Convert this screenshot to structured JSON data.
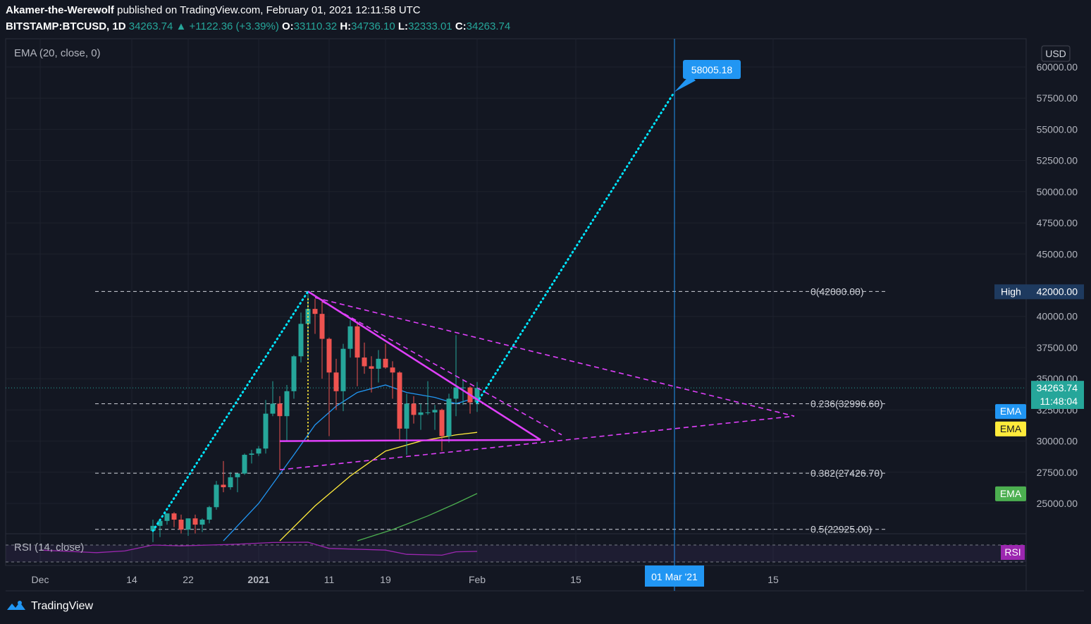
{
  "header": {
    "line1_user": "Akamer-the-Werewolf",
    "line1_rest": " published on TradingView.com, February 01, 2021 12:11:58 UTC",
    "symbol": "BITSTAMP:BTCUSD, 1D",
    "last": "34263.74",
    "change": "+1122.36 (+3.39%)",
    "o_label": "O:",
    "o": "33110.32",
    "h_label": "H:",
    "h": "34736.10",
    "l_label": "L:",
    "l": "32333.01",
    "c_label": "C:",
    "c": "34263.74"
  },
  "legend": {
    "ema": "EMA (20, close, 0)",
    "rsi": "RSI (14, close)"
  },
  "footer": {
    "brand": "TradingView"
  },
  "colors": {
    "background": "#131722",
    "up": "#26a69a",
    "down": "#ef5350",
    "ema20": "#2196f3",
    "ema50": "#ffeb3b",
    "ema100": "#4caf50",
    "pattern": "#e040fb",
    "projection": "#00e5ff",
    "rsi": "#9c27b0",
    "fib": "#d1d4dc"
  },
  "chart_data": {
    "type": "candlestick",
    "ylim": [
      22000,
      62000
    ],
    "currency": "USD",
    "y_ticks": [
      "60000.00",
      "57500.00",
      "55000.00",
      "52500.00",
      "50000.00",
      "47500.00",
      "45000.00",
      "40000.00",
      "37500.00",
      "35000.00",
      "32500.00",
      "30000.00",
      "27500.00",
      "25000.00"
    ],
    "x_ticks": [
      {
        "label": "Dec",
        "date": "2020-12-01"
      },
      {
        "label": "14",
        "date": "2020-12-14"
      },
      {
        "label": "22",
        "date": "2020-12-22"
      },
      {
        "label": "2021",
        "date": "2021-01-01"
      },
      {
        "label": "11",
        "date": "2021-01-11"
      },
      {
        "label": "19",
        "date": "2021-01-19"
      },
      {
        "label": "Feb",
        "date": "2021-02-01"
      },
      {
        "label": "15",
        "date": "2021-02-15"
      },
      {
        "label": "15",
        "date": "2021-03-15"
      }
    ],
    "candles": [
      {
        "d": "2020-12-17",
        "o": 22800,
        "h": 23700,
        "l": 21900,
        "c": 23200
      },
      {
        "d": "2020-12-18",
        "o": 23200,
        "h": 23300,
        "l": 22300,
        "c": 23600
      },
      {
        "d": "2020-12-19",
        "o": 23600,
        "h": 24200,
        "l": 23300,
        "c": 24200
      },
      {
        "d": "2020-12-20",
        "o": 24200,
        "h": 24300,
        "l": 23100,
        "c": 23700
      },
      {
        "d": "2020-12-21",
        "o": 23700,
        "h": 24100,
        "l": 22600,
        "c": 22900
      },
      {
        "d": "2020-12-22",
        "o": 22900,
        "h": 23800,
        "l": 22400,
        "c": 23800
      },
      {
        "d": "2020-12-23",
        "o": 23800,
        "h": 24100,
        "l": 22600,
        "c": 23300
      },
      {
        "d": "2020-12-24",
        "o": 23300,
        "h": 23800,
        "l": 22700,
        "c": 23700
      },
      {
        "d": "2020-12-25",
        "o": 23700,
        "h": 24800,
        "l": 23400,
        "c": 24700
      },
      {
        "d": "2020-12-26",
        "o": 24700,
        "h": 26800,
        "l": 24500,
        "c": 26500
      },
      {
        "d": "2020-12-27",
        "o": 26500,
        "h": 28400,
        "l": 25900,
        "c": 26300
      },
      {
        "d": "2020-12-28",
        "o": 26300,
        "h": 27500,
        "l": 26100,
        "c": 27100
      },
      {
        "d": "2020-12-29",
        "o": 27100,
        "h": 27400,
        "l": 25900,
        "c": 27400
      },
      {
        "d": "2020-12-30",
        "o": 27400,
        "h": 29000,
        "l": 27300,
        "c": 28900
      },
      {
        "d": "2020-12-31",
        "o": 28900,
        "h": 29300,
        "l": 28200,
        "c": 29000
      },
      {
        "d": "2021-01-01",
        "o": 29000,
        "h": 29600,
        "l": 28800,
        "c": 29400
      },
      {
        "d": "2021-01-02",
        "o": 29400,
        "h": 33300,
        "l": 29000,
        "c": 32200
      },
      {
        "d": "2021-01-03",
        "o": 32200,
        "h": 34800,
        "l": 32000,
        "c": 33000
      },
      {
        "d": "2021-01-04",
        "o": 33000,
        "h": 33600,
        "l": 27700,
        "c": 32000
      },
      {
        "d": "2021-01-05",
        "o": 32000,
        "h": 34500,
        "l": 30000,
        "c": 34000
      },
      {
        "d": "2021-01-06",
        "o": 34000,
        "h": 36900,
        "l": 33400,
        "c": 36800
      },
      {
        "d": "2021-01-07",
        "o": 36800,
        "h": 40300,
        "l": 36300,
        "c": 39400
      },
      {
        "d": "2021-01-08",
        "o": 39400,
        "h": 42000,
        "l": 36600,
        "c": 40600
      },
      {
        "d": "2021-01-09",
        "o": 40600,
        "h": 41400,
        "l": 38600,
        "c": 40200
      },
      {
        "d": "2021-01-10",
        "o": 40200,
        "h": 41400,
        "l": 35000,
        "c": 38200
      },
      {
        "d": "2021-01-11",
        "o": 38200,
        "h": 38300,
        "l": 30400,
        "c": 35500
      },
      {
        "d": "2021-01-12",
        "o": 35500,
        "h": 36600,
        "l": 32500,
        "c": 34000
      },
      {
        "d": "2021-01-13",
        "o": 34000,
        "h": 37800,
        "l": 32400,
        "c": 37400
      },
      {
        "d": "2021-01-14",
        "o": 37400,
        "h": 39700,
        "l": 36700,
        "c": 39200
      },
      {
        "d": "2021-01-15",
        "o": 39200,
        "h": 39600,
        "l": 34400,
        "c": 36700
      },
      {
        "d": "2021-01-16",
        "o": 36700,
        "h": 37900,
        "l": 35400,
        "c": 36000
      },
      {
        "d": "2021-01-17",
        "o": 36000,
        "h": 36800,
        "l": 33900,
        "c": 35800
      },
      {
        "d": "2021-01-18",
        "o": 35800,
        "h": 37300,
        "l": 34700,
        "c": 36600
      },
      {
        "d": "2021-01-19",
        "o": 36600,
        "h": 37800,
        "l": 35800,
        "c": 35900
      },
      {
        "d": "2021-01-20",
        "o": 35900,
        "h": 36400,
        "l": 33400,
        "c": 35500
      },
      {
        "d": "2021-01-21",
        "o": 35500,
        "h": 35600,
        "l": 30100,
        "c": 31000
      },
      {
        "d": "2021-01-22",
        "o": 31000,
        "h": 33800,
        "l": 28900,
        "c": 33000
      },
      {
        "d": "2021-01-23",
        "o": 33000,
        "h": 33600,
        "l": 31400,
        "c": 32100
      },
      {
        "d": "2021-01-24",
        "o": 32100,
        "h": 33000,
        "l": 30900,
        "c": 32300
      },
      {
        "d": "2021-01-25",
        "o": 32300,
        "h": 34800,
        "l": 32100,
        "c": 32300
      },
      {
        "d": "2021-01-26",
        "o": 32300,
        "h": 32900,
        "l": 30900,
        "c": 32500
      },
      {
        "d": "2021-01-27",
        "o": 32500,
        "h": 32600,
        "l": 29200,
        "c": 30400
      },
      {
        "d": "2021-01-28",
        "o": 30400,
        "h": 33800,
        "l": 29900,
        "c": 33400
      },
      {
        "d": "2021-01-29",
        "o": 33400,
        "h": 38500,
        "l": 32000,
        "c": 34300
      },
      {
        "d": "2021-01-30",
        "o": 34300,
        "h": 34900,
        "l": 32900,
        "c": 34300
      },
      {
        "d": "2021-01-31",
        "o": 34300,
        "h": 34400,
        "l": 32200,
        "c": 33100
      },
      {
        "d": "2021-02-01",
        "o": 33110.32,
        "h": 34736.1,
        "l": 32333.01,
        "c": 34263.74
      }
    ],
    "ema20": [
      {
        "d": "2020-12-27",
        "v": 22000
      },
      {
        "d": "2021-01-01",
        "v": 25000
      },
      {
        "d": "2021-01-06",
        "v": 28900
      },
      {
        "d": "2021-01-09",
        "v": 31300
      },
      {
        "d": "2021-01-12",
        "v": 32800
      },
      {
        "d": "2021-01-15",
        "v": 33900
      },
      {
        "d": "2021-01-19",
        "v": 34500
      },
      {
        "d": "2021-01-22",
        "v": 33900
      },
      {
        "d": "2021-01-26",
        "v": 33500
      },
      {
        "d": "2021-01-29",
        "v": 33000
      },
      {
        "d": "2021-02-01",
        "v": 33500
      }
    ],
    "ema50": [
      {
        "d": "2021-01-04",
        "v": 22000
      },
      {
        "d": "2021-01-09",
        "v": 24800
      },
      {
        "d": "2021-01-14",
        "v": 27200
      },
      {
        "d": "2021-01-19",
        "v": 29200
      },
      {
        "d": "2021-01-24",
        "v": 30000
      },
      {
        "d": "2021-01-29",
        "v": 30500
      },
      {
        "d": "2021-02-01",
        "v": 30700
      }
    ],
    "ema100": [
      {
        "d": "2021-01-15",
        "v": 22000
      },
      {
        "d": "2021-01-20",
        "v": 22900
      },
      {
        "d": "2021-01-25",
        "v": 24000
      },
      {
        "d": "2021-01-29",
        "v": 25000
      },
      {
        "d": "2021-02-01",
        "v": 25800
      }
    ],
    "fib_levels": [
      {
        "label": "0(42000.00)",
        "value": 42000
      },
      {
        "label": "0.236(32996.60)",
        "value": 32996.6
      },
      {
        "label": "0.382(27426.70)",
        "value": 27426.7
      },
      {
        "label": "0.5(22925.00)",
        "value": 22925
      }
    ],
    "pattern_lines": [
      {
        "from": [
          "2021-01-08",
          42000
        ],
        "to": [
          "2021-02-10",
          30100
        ],
        "style": "solid"
      },
      {
        "from": [
          "2021-01-04",
          30000
        ],
        "to": [
          "2021-02-10",
          30100
        ],
        "style": "solid"
      },
      {
        "from": [
          "2021-01-09",
          41500
        ],
        "to": [
          "2021-03-18",
          32000
        ],
        "style": "dashed"
      },
      {
        "from": [
          "2021-01-04",
          27700
        ],
        "to": [
          "2021-03-18",
          32000
        ],
        "style": "dashed"
      },
      {
        "from": [
          "2021-01-10",
          41200
        ],
        "to": [
          "2021-02-13",
          30500
        ],
        "style": "dashed"
      }
    ],
    "projection_lines": [
      {
        "from": [
          "2020-12-17",
          22800
        ],
        "to": [
          "2021-01-08",
          42000
        ]
      },
      {
        "from": [
          "2021-02-01",
          33100
        ],
        "to": [
          "2021-03-01",
          58005.18
        ]
      }
    ],
    "vertical_marker": {
      "date": "2021-03-01",
      "label": "01 Mar '21"
    },
    "target_label": "58005.18",
    "target_value": 58005.18,
    "price_tags": [
      {
        "label": "High",
        "value": "42000.00",
        "level": 42000,
        "bg": "#1e3a5f"
      },
      {
        "value": "34263.74",
        "level": 34263.74,
        "bg": "#26a69a"
      },
      {
        "value": "11:48:04",
        "level": 33200,
        "bg": "#26a69a"
      },
      {
        "value": "EMA",
        "level": 32400,
        "bg": "#2196f3"
      },
      {
        "value": "EMA",
        "level": 31000,
        "bg": "#ffeb3b"
      },
      {
        "value": "EMA",
        "level": 25800,
        "bg": "#4caf50"
      }
    ],
    "rsi": {
      "label": "RSI",
      "upper": 70,
      "lower": 30,
      "values": [
        {
          "d": "2020-12-01",
          "v": 58
        },
        {
          "d": "2020-12-05",
          "v": 55
        },
        {
          "d": "2020-12-09",
          "v": 52
        },
        {
          "d": "2020-12-13",
          "v": 56
        },
        {
          "d": "2020-12-17",
          "v": 70
        },
        {
          "d": "2020-12-21",
          "v": 68
        },
        {
          "d": "2020-12-25",
          "v": 70
        },
        {
          "d": "2020-12-29",
          "v": 72
        },
        {
          "d": "2021-01-03",
          "v": 76
        },
        {
          "d": "2021-01-08",
          "v": 80
        },
        {
          "d": "2021-01-11",
          "v": 62
        },
        {
          "d": "2021-01-15",
          "v": 60
        },
        {
          "d": "2021-01-19",
          "v": 58
        },
        {
          "d": "2021-01-22",
          "v": 48
        },
        {
          "d": "2021-01-27",
          "v": 46
        },
        {
          "d": "2021-01-29",
          "v": 54
        },
        {
          "d": "2021-02-01",
          "v": 55
        }
      ]
    }
  }
}
